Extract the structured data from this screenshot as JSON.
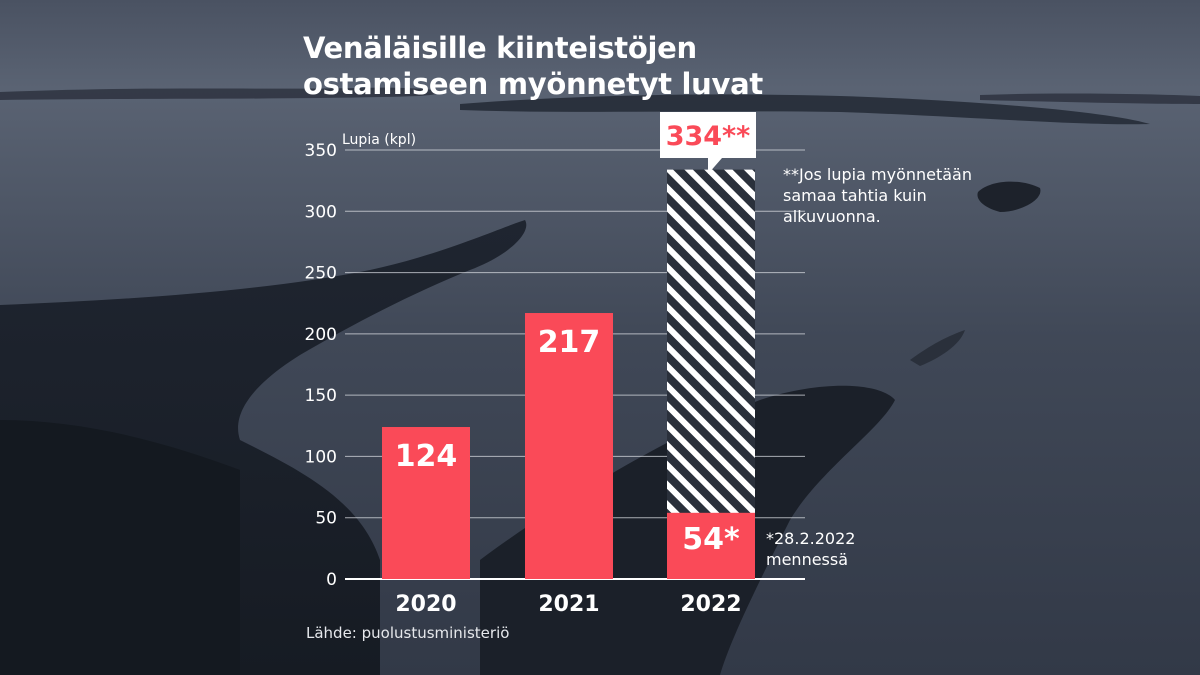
{
  "title_line1": "Venäläisille kiinteistöjen",
  "title_line2": "ostamiseen myönnetyt luvat",
  "source": "Lähde: puolustusministeriö",
  "note_projection": "**Jos lupia myönnetään samaa tahtia kuin alkuvuonna.",
  "note_ytd": "*28.2.2022 mennessä",
  "colors": {
    "bar": "#fa4a58",
    "projection_stripe": "#ffffff",
    "projection_bg": "#2a303b",
    "projection_label": "#fa4a58",
    "axis": "#ffffff",
    "grid": "#d9dce2"
  },
  "chart_data": {
    "type": "bar",
    "ylabel": "Lupia (kpl)",
    "ylim": [
      0,
      350
    ],
    "yticks": [
      0,
      50,
      100,
      150,
      200,
      250,
      300,
      350
    ],
    "grid": true,
    "categories": [
      "2020",
      "2021",
      "2022"
    ],
    "values": [
      124,
      217,
      54
    ],
    "value_labels": [
      "124",
      "217",
      "54*"
    ],
    "projection": {
      "category": "2022",
      "value": 334,
      "label": "334**"
    }
  }
}
